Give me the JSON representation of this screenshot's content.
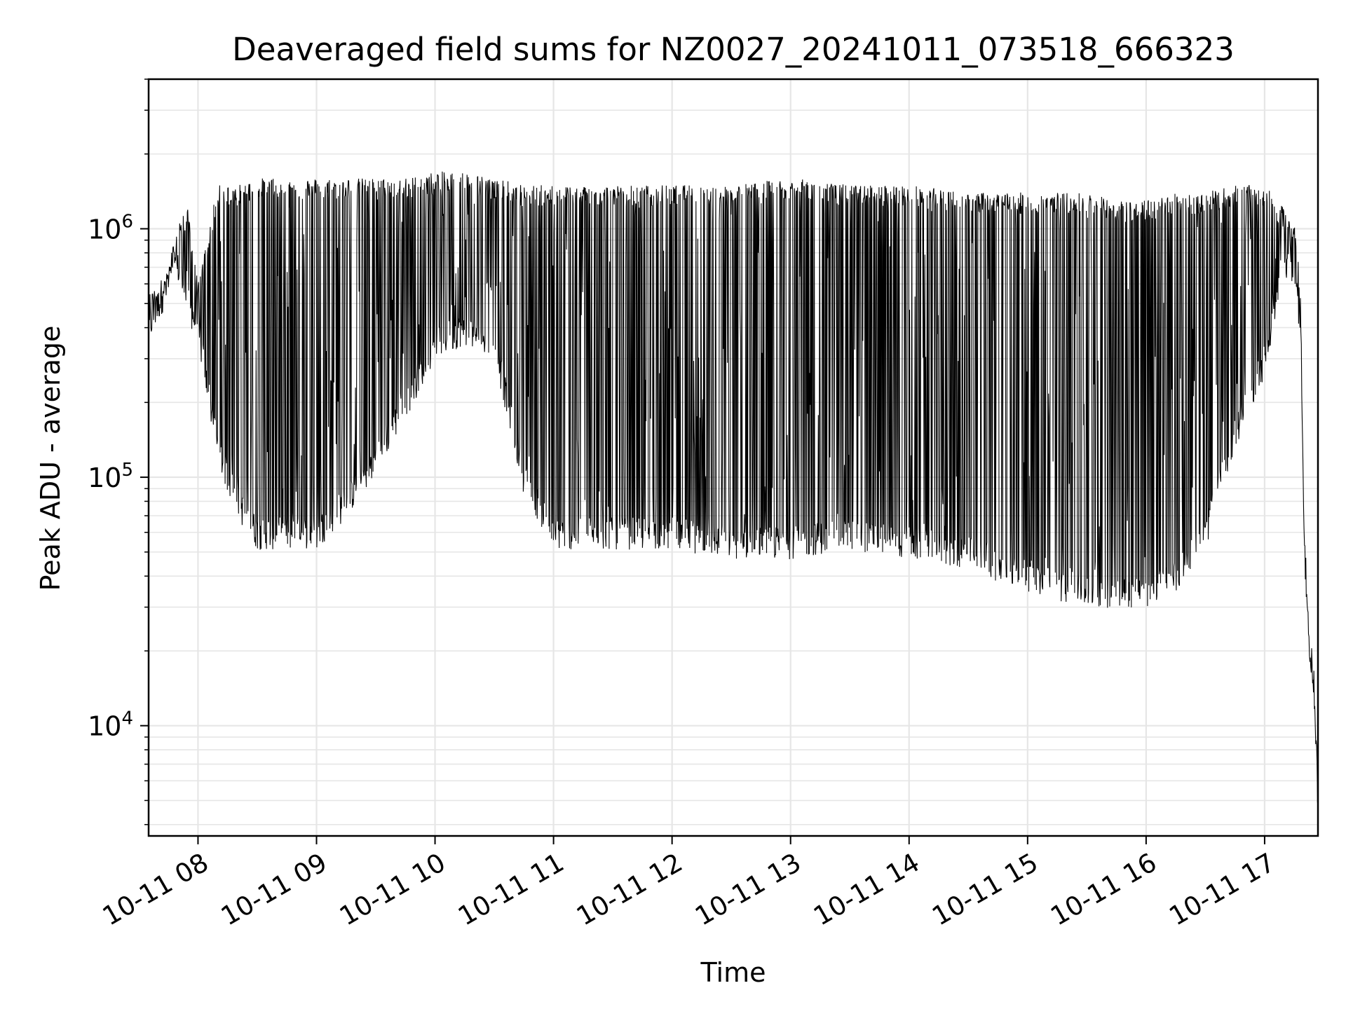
{
  "chart_data": {
    "type": "line",
    "title": "Deaveraged field sums for NZ0027_20241011_073518_666323",
    "xlabel": "Time",
    "ylabel": "Peak ADU - average",
    "x_scale": "time",
    "y_scale": "log",
    "xlim": [
      "2024-10-11 07:35",
      "2024-10-11 17:27"
    ],
    "ylim": [
      3600,
      4000000
    ],
    "x_ticks": [
      "10-11 08",
      "10-11 09",
      "10-11 10",
      "10-11 11",
      "10-11 12",
      "10-11 13",
      "10-11 14",
      "10-11 15",
      "10-11 16",
      "10-11 17"
    ],
    "x_tick_times": [
      "2024-10-11 08:00",
      "2024-10-11 09:00",
      "2024-10-11 10:00",
      "2024-10-11 11:00",
      "2024-10-11 12:00",
      "2024-10-11 13:00",
      "2024-10-11 14:00",
      "2024-10-11 15:00",
      "2024-10-11 16:00",
      "2024-10-11 17:00"
    ],
    "y_ticks": [
      10000,
      100000,
      1000000
    ],
    "y_tick_labels": [
      {
        "base": "10",
        "exp": "4"
      },
      {
        "base": "10",
        "exp": "5"
      },
      {
        "base": "10",
        "exp": "6"
      }
    ],
    "grid": true,
    "line_color": "#000000",
    "series": [
      {
        "x": [
          "2024-10-11 07:35",
          "2024-10-11 07:40",
          "2024-10-11 07:45",
          "2024-10-11 07:50",
          "2024-10-11 07:55",
          "2024-10-11 08:00",
          "2024-10-11 08:10",
          "2024-10-11 08:20",
          "2024-10-11 08:30",
          "2024-10-11 08:45",
          "2024-10-11 09:00",
          "2024-10-11 09:15",
          "2024-10-11 09:30",
          "2024-10-11 09:45",
          "2024-10-11 10:00",
          "2024-10-11 10:15",
          "2024-10-11 10:30",
          "2024-10-11 10:45",
          "2024-10-11 11:00",
          "2024-10-11 11:30",
          "2024-10-11 12:00",
          "2024-10-11 12:30",
          "2024-10-11 13:00",
          "2024-10-11 13:30",
          "2024-10-11 14:00",
          "2024-10-11 14:30",
          "2024-10-11 15:00",
          "2024-10-11 15:30",
          "2024-10-11 15:45",
          "2024-10-11 16:00",
          "2024-10-11 16:15",
          "2024-10-11 16:30",
          "2024-10-11 16:45",
          "2024-10-11 17:00",
          "2024-10-11 17:10",
          "2024-10-11 17:15",
          "2024-10-11 17:18",
          "2024-10-11 17:20",
          "2024-10-11 17:22",
          "2024-10-11 17:25",
          "2024-10-11 17:27"
        ],
        "y_low": [
          400000,
          500000,
          600000,
          700000,
          500000,
          400000,
          130000,
          80000,
          60000,
          60000,
          60000,
          80000,
          120000,
          200000,
          350000,
          400000,
          350000,
          100000,
          60000,
          60000,
          60000,
          55000,
          55000,
          60000,
          55000,
          50000,
          40000,
          35000,
          35000,
          35000,
          40000,
          60000,
          150000,
          300000,
          700000,
          700000,
          400000,
          60000,
          25000,
          15000,
          5000
        ],
        "y_high": [
          550000,
          600000,
          700000,
          1100000,
          1200000,
          600000,
          1500000,
          1500000,
          1600000,
          1600000,
          1600000,
          1600000,
          1600000,
          1600000,
          1700000,
          1700000,
          1600000,
          1500000,
          1500000,
          1500000,
          1500000,
          1500000,
          1600000,
          1500000,
          1500000,
          1400000,
          1400000,
          1400000,
          1300000,
          1300000,
          1400000,
          1400000,
          1500000,
          1500000,
          1200000,
          1100000,
          700000,
          60000,
          25000,
          15000,
          5000
        ]
      }
    ]
  }
}
